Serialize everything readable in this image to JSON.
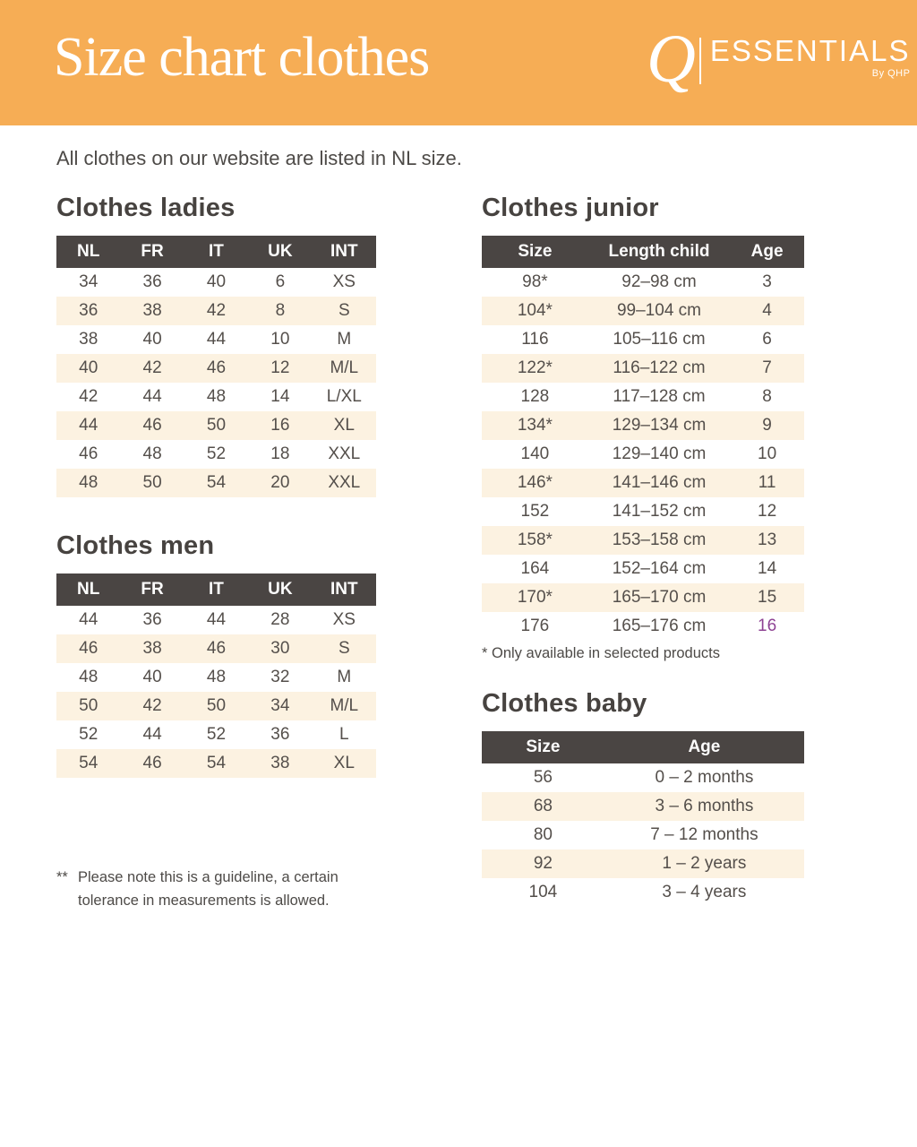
{
  "banner": {
    "title": "Size chart clothes",
    "logo": {
      "q": "Q",
      "name": "ESSENTIALS",
      "byline": "By QHP"
    }
  },
  "intro": "All clothes on our website are listed in NL size.",
  "colors": {
    "banner_orange": "#F6AD55",
    "table_header_bg": "#4A4543",
    "row_cream": "#FCF2E1",
    "text_dark": "#4D4A47",
    "header_text_white": "#FDFDFD",
    "highlight_purple": "#8D4293"
  },
  "tables": {
    "ladies": {
      "heading": "Clothes ladies",
      "columns": [
        "NL",
        "FR",
        "IT",
        "UK",
        "INT"
      ],
      "col_widths": [
        "20%",
        "20%",
        "20%",
        "20%",
        "20%"
      ],
      "rows": [
        [
          "34",
          "36",
          "40",
          "6",
          "XS"
        ],
        [
          "36",
          "38",
          "42",
          "8",
          "S"
        ],
        [
          "38",
          "40",
          "44",
          "10",
          "M"
        ],
        [
          "40",
          "42",
          "46",
          "12",
          "M/L"
        ],
        [
          "42",
          "44",
          "48",
          "14",
          "L/XL"
        ],
        [
          "44",
          "46",
          "50",
          "16",
          "XL"
        ],
        [
          "46",
          "48",
          "52",
          "18",
          "XXL"
        ],
        [
          "48",
          "50",
          "54",
          "20",
          "XXL"
        ]
      ]
    },
    "men": {
      "heading": "Clothes men",
      "columns": [
        "NL",
        "FR",
        "IT",
        "UK",
        "INT"
      ],
      "col_widths": [
        "20%",
        "20%",
        "20%",
        "20%",
        "20%"
      ],
      "rows": [
        [
          "44",
          "36",
          "44",
          "28",
          "XS"
        ],
        [
          "46",
          "38",
          "46",
          "30",
          "S"
        ],
        [
          "48",
          "40",
          "48",
          "32",
          "M"
        ],
        [
          "50",
          "42",
          "50",
          "34",
          "M/L"
        ],
        [
          "52",
          "44",
          "52",
          "36",
          "L"
        ],
        [
          "54",
          "46",
          "54",
          "38",
          "XL"
        ]
      ]
    },
    "junior": {
      "heading": "Clothes junior",
      "columns": [
        "Size",
        "Length child",
        "Age"
      ],
      "col_widths": [
        "33%",
        "44%",
        "23%"
      ],
      "rows": [
        [
          "98*",
          "92–98 cm",
          "3"
        ],
        [
          "104*",
          "99–104 cm",
          "4"
        ],
        [
          "116",
          "105–116 cm",
          "6"
        ],
        [
          "122*",
          "116–122 cm",
          "7"
        ],
        [
          "128",
          "117–128 cm",
          "8"
        ],
        [
          "134*",
          "129–134 cm",
          "9"
        ],
        [
          "140",
          "129–140 cm",
          "10"
        ],
        [
          "146*",
          "141–146 cm",
          "11"
        ],
        [
          "152",
          "141–152 cm",
          "12"
        ],
        [
          "158*",
          "153–158 cm",
          "13"
        ],
        [
          "164",
          "152–164 cm",
          "14"
        ],
        [
          "170*",
          "165–170 cm",
          "15"
        ],
        [
          "176",
          "165–176 cm",
          "16"
        ]
      ],
      "highlight_cell": [
        12,
        2
      ],
      "highlight_color": "#8D4293",
      "footnote": "* Only available in selected products"
    },
    "baby": {
      "heading": "Clothes baby",
      "columns": [
        "Size",
        "Age"
      ],
      "col_widths": [
        "38%",
        "62%"
      ],
      "rows": [
        [
          "56",
          "0 – 2 months"
        ],
        [
          "68",
          "3 – 6 months"
        ],
        [
          "80",
          "7 – 12 months"
        ],
        [
          "92",
          "1 – 2 years"
        ],
        [
          "104",
          "3 – 4 years"
        ]
      ]
    }
  },
  "footnote_main": {
    "marker": "**",
    "line1": "Please note this is a guideline, a certain",
    "line2": "tolerance in measurements is allowed."
  }
}
